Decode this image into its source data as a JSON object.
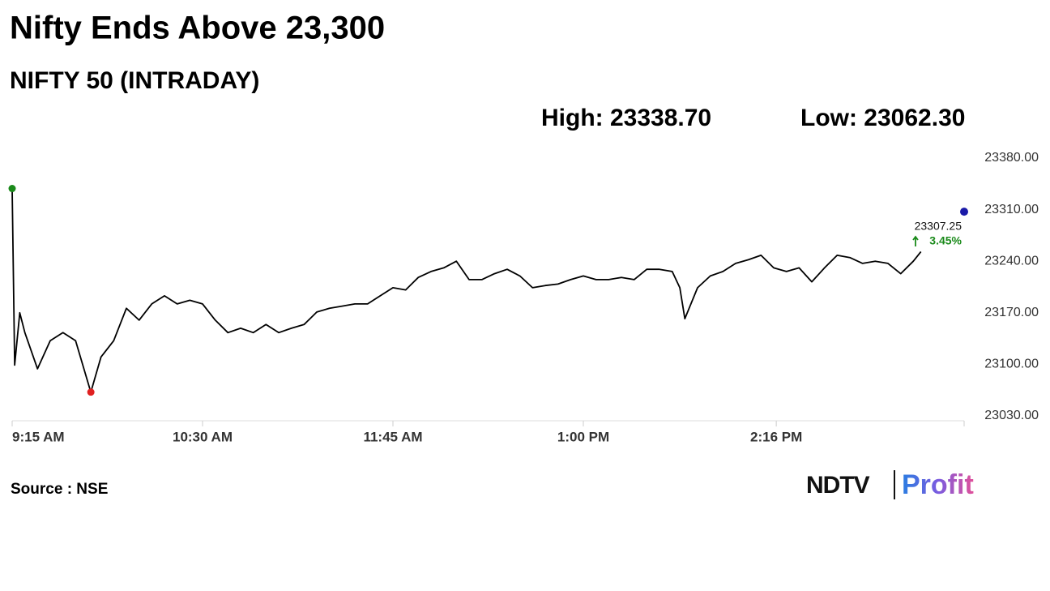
{
  "chart_data": {
    "type": "line",
    "title": "Nifty Ends Above 23,300",
    "subtitle": "NIFTY 50 (INTRADAY)",
    "high_label": "High: 23338.70",
    "low_label": "Low: 23062.30",
    "x": [
      "09:15",
      "09:16",
      "09:18",
      "09:20",
      "09:25",
      "09:30",
      "09:35",
      "09:40",
      "09:46",
      "09:50",
      "09:55",
      "10:00",
      "10:05",
      "10:10",
      "10:15",
      "10:20",
      "10:25",
      "10:30",
      "10:35",
      "10:40",
      "10:45",
      "10:50",
      "10:55",
      "11:00",
      "11:05",
      "11:10",
      "11:15",
      "11:20",
      "11:25",
      "11:30",
      "11:35",
      "11:40",
      "11:45",
      "11:50",
      "11:55",
      "12:00",
      "12:05",
      "12:10",
      "12:15",
      "12:20",
      "12:25",
      "12:30",
      "12:35",
      "12:40",
      "12:45",
      "12:50",
      "12:55",
      "13:00",
      "13:05",
      "13:10",
      "13:15",
      "13:20",
      "13:25",
      "13:30",
      "13:35",
      "13:38",
      "13:40",
      "13:45",
      "13:50",
      "13:55",
      "14:00",
      "14:05",
      "14:10",
      "14:15",
      "14:20",
      "14:25",
      "14:30",
      "14:35",
      "14:40",
      "14:45",
      "14:50",
      "14:55",
      "15:00",
      "15:05",
      "15:10",
      "15:13"
    ],
    "series": [
      {
        "name": "NIFTY 50",
        "color": "#000000",
        "values": [
          23338.7,
          23099,
          23170,
          23143,
          23094,
          23132,
          23143,
          23132,
          23062.3,
          23110,
          23132,
          23176,
          23160,
          23182,
          23193,
          23182,
          23187,
          23182,
          23160,
          23143,
          23149,
          23143,
          23154,
          23143,
          23149,
          23154,
          23171,
          23176,
          23179,
          23182,
          23182,
          23193,
          23204,
          23201,
          23218,
          23226,
          23231,
          23240,
          23215,
          23215,
          23223,
          23229,
          23220,
          23204,
          23207,
          23209,
          23215,
          23220,
          23215,
          23215,
          23218,
          23215,
          23229,
          23229,
          23226,
          23204,
          23162,
          23204,
          23220,
          23226,
          23237,
          23242,
          23248,
          23231,
          23226,
          23231,
          23212,
          23231,
          23248,
          23245,
          23237,
          23240,
          23237,
          23223,
          23240,
          23253
        ]
      }
    ],
    "high": {
      "x": "09:15",
      "value": 23338.7,
      "color": "#1a8a1a"
    },
    "low": {
      "x": "09:46",
      "value": 23062.3,
      "color": "#e02020"
    },
    "close": {
      "x": "15:30",
      "value": 23307.25,
      "change": 3.45,
      "change_label": "3.45%",
      "color": "#1a1aa8",
      "change_color": "#1a8a1a"
    },
    "xlim": [
      "09:15",
      "15:30"
    ],
    "xticks": [
      {
        "value": "09:15",
        "label": "9:15 AM"
      },
      {
        "value": "10:30",
        "label": "10:30 AM"
      },
      {
        "value": "11:45",
        "label": "11:45 AM"
      },
      {
        "value": "13:00",
        "label": "1:00 PM"
      },
      {
        "value": "14:16",
        "label": "2:16 PM"
      }
    ],
    "ylim": [
      23030,
      23380
    ],
    "yticks": [
      {
        "value": 23030,
        "label": "23030.00"
      },
      {
        "value": 23100,
        "label": "23100.00"
      },
      {
        "value": 23170,
        "label": "23170.00"
      },
      {
        "value": 23240,
        "label": "23240.00"
      },
      {
        "value": 23310,
        "label": "23310.00"
      },
      {
        "value": 23380,
        "label": "23380.00"
      }
    ],
    "source": "Source : NSE",
    "logo_left": "NDTV",
    "logo_right": "Profit"
  }
}
